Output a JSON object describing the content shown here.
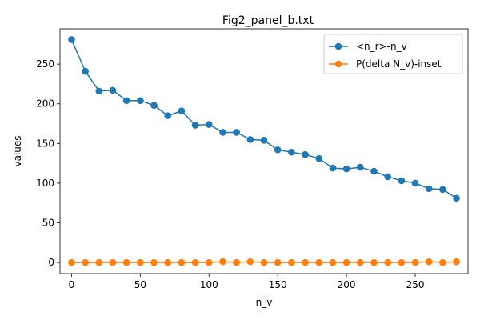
{
  "chart_data": {
    "type": "line",
    "title": "Fig2_panel_b.txt",
    "xlabel": "n_v",
    "ylabel": "values",
    "xlim": [
      -8.4,
      288.4
    ],
    "ylim": [
      -14,
      294.5
    ],
    "xticks": [
      0,
      50,
      100,
      150,
      200,
      250
    ],
    "yticks": [
      0,
      50,
      100,
      150,
      200,
      250
    ],
    "grid": false,
    "legend_position": "top-right",
    "x": [
      0,
      10,
      20,
      30,
      40,
      50,
      60,
      70,
      80,
      90,
      100,
      110,
      120,
      130,
      140,
      150,
      160,
      170,
      180,
      190,
      200,
      210,
      220,
      230,
      240,
      250,
      260,
      270,
      280
    ],
    "series": [
      {
        "name": "<n_r>-n_v",
        "color": "#1f77b4",
        "marker": "circle",
        "values": [
          281,
          241,
          216,
          217,
          204,
          204,
          198,
          185,
          191,
          173,
          174,
          164,
          164,
          155,
          154,
          142,
          139,
          136,
          131,
          119,
          118,
          120,
          115,
          108,
          103,
          100,
          93,
          92,
          81
        ]
      },
      {
        "name": "P(delta N_v)-inset",
        "color": "#ff7f0e",
        "marker": "circle",
        "values": [
          0,
          0,
          0,
          0,
          0,
          0,
          0,
          0,
          0,
          0,
          0,
          1,
          0,
          1,
          0,
          0,
          0,
          0,
          0,
          0,
          0,
          0,
          0,
          0,
          0,
          0,
          1,
          0,
          1
        ]
      }
    ]
  }
}
